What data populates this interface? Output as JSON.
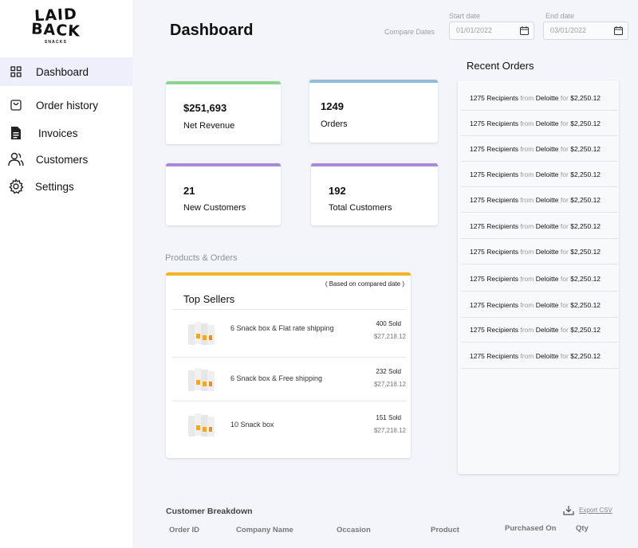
{
  "brand": {
    "line1": "LAID",
    "line2": "BACK",
    "line3": "SNACKS"
  },
  "sidebar": {
    "items": [
      {
        "label": "Dashboard",
        "icon": "grid-icon",
        "active": true
      },
      {
        "label": "Order history",
        "icon": "shopping-bag-icon"
      },
      {
        "label": "Invoices",
        "icon": "document-icon"
      },
      {
        "label": "Customers",
        "icon": "users-icon"
      },
      {
        "label": "Settings",
        "icon": "gear-icon"
      }
    ]
  },
  "header": {
    "title": "Dashboard",
    "compare_label": "Compare Dates",
    "start_label": "Start date",
    "start_value": "01/01/2022",
    "end_label": "End date",
    "end_value": "03/01/2022"
  },
  "stats": [
    {
      "value": "$251,693",
      "label": "Net Revenue",
      "color": "#8ed38f"
    },
    {
      "value": "1249",
      "label": "Orders",
      "color": "#8fbcd8"
    },
    {
      "value": "21",
      "label": "New Customers",
      "color": "#a98ad7"
    },
    {
      "value": "192",
      "label": "Total Customers",
      "color": "#a98ad7"
    }
  ],
  "products": {
    "section_label": "Products & Orders",
    "note": "( Based on compared date )",
    "title": "Top Sellers",
    "accent": "#f4b322",
    "items": [
      {
        "name": "6 Snack box & Flat rate shipping",
        "sold": "400 Sold",
        "amount": "$27,218.12"
      },
      {
        "name": "6 Snack box & Free shipping",
        "sold": "232 Sold",
        "amount": "$27,218.12"
      },
      {
        "name": "10 Snack box",
        "sold": "151 Sold",
        "amount": "$27,218.12"
      }
    ]
  },
  "recent_orders": {
    "title": "Recent Orders",
    "rows": [
      {
        "recipients": "1275 Recipients",
        "from": "from",
        "company": "Deloitte",
        "for": "for",
        "amount": "$2,250.12"
      },
      {
        "recipients": "1275 Recipients",
        "from": "from",
        "company": "Deloitte",
        "for": "for",
        "amount": "$2,250.12"
      },
      {
        "recipients": "1275 Recipients",
        "from": "from",
        "company": "Deloitte",
        "for": "for",
        "amount": "$2,250.12"
      },
      {
        "recipients": "1275 Recipients",
        "from": "from",
        "company": "Deloitte",
        "for": "for",
        "amount": "$2,250.12"
      },
      {
        "recipients": "1275 Recipients",
        "from": "from",
        "company": "Deloitte",
        "for": "for",
        "amount": "$2,250.12"
      },
      {
        "recipients": "1275 Recipients",
        "from": "from",
        "company": "Deloitte",
        "for": "for",
        "amount": "$2,250.12"
      },
      {
        "recipients": "1275 Recipients",
        "from": "from",
        "company": "Deloitte",
        "for": "for",
        "amount": "$2,250.12"
      },
      {
        "recipients": "1275 Recipients",
        "from": "from",
        "company": "Deloitte",
        "for": "for",
        "amount": "$2,250.12"
      },
      {
        "recipients": "1275 Recipients",
        "from": "from",
        "company": "Deloitte",
        "for": "for",
        "amount": "$2,250.12"
      },
      {
        "recipients": "1275 Recipients",
        "from": "from",
        "company": "Deloitte",
        "for": "for",
        "amount": "$2,250.12"
      },
      {
        "recipients": "1275 Recipients",
        "from": "from",
        "company": "Deloitte",
        "for": "for",
        "amount": "$2,250.12"
      }
    ]
  },
  "customer_breakdown": {
    "title": "Customer Breakdown",
    "export_label": "Export CSV",
    "columns": [
      "Order ID",
      "Company Name",
      "Occasion",
      "Product",
      "Purchased On",
      "Qty"
    ]
  }
}
